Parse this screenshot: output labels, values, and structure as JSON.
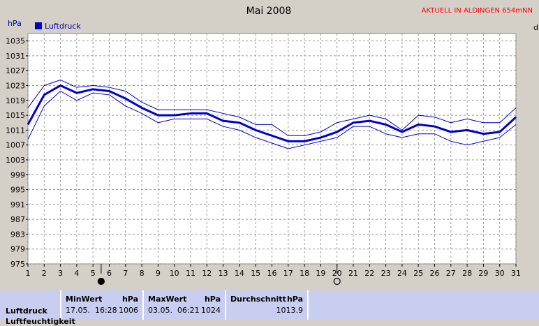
{
  "chart_data": {
    "type": "line",
    "title": "Mai 2008",
    "subtitle": "AKTUELL IN ALDINGEN 654mNN",
    "ylabel": "hPa",
    "right_edge_label": "d",
    "legend": "Luftdruck",
    "legend_placement": "top-left",
    "grid": true,
    "ylim": [
      975,
      1037
    ],
    "yticks": [
      975,
      979,
      983,
      987,
      991,
      995,
      999,
      1003,
      1007,
      1011,
      1015,
      1019,
      1023,
      1027,
      1031,
      1035
    ],
    "x": [
      1,
      2,
      3,
      4,
      5,
      6,
      7,
      8,
      9,
      10,
      11,
      12,
      13,
      14,
      15,
      16,
      17,
      18,
      19,
      20,
      21,
      22,
      23,
      24,
      25,
      26,
      27,
      28,
      29,
      30,
      31
    ],
    "series": [
      {
        "name": "Luftdruck",
        "role": "mean",
        "values": [
          1012.5,
          1020.5,
          1023,
          1021,
          1022,
          1021.5,
          1019.5,
          1017,
          1015,
          1015,
          1015.5,
          1015.5,
          1013.5,
          1013,
          1011,
          1009.5,
          1008,
          1008,
          1009,
          1010.5,
          1013,
          1013.5,
          1012.5,
          1010.5,
          1012.5,
          1012,
          1010.5,
          1011,
          1010,
          1010.5,
          1014.5
        ]
      },
      {
        "role": "max",
        "values": [
          1017,
          1023,
          1024.5,
          1022.5,
          1023,
          1022.5,
          1021.5,
          1018.5,
          1016.5,
          1016.5,
          1016.5,
          1016.5,
          1015.5,
          1014.5,
          1012.5,
          1012.5,
          1009.5,
          1009.5,
          1010.5,
          1013,
          1014,
          1015,
          1014,
          1011,
          1015,
          1014.5,
          1013,
          1014,
          1013,
          1013,
          1017
        ]
      },
      {
        "role": "min",
        "values": [
          1008.5,
          1017.5,
          1021.5,
          1019,
          1021,
          1020.5,
          1017.5,
          1015.5,
          1013,
          1014,
          1014,
          1014,
          1012,
          1011,
          1009,
          1007.5,
          1006,
          1007,
          1008,
          1009,
          1012,
          1012,
          1010,
          1009,
          1010,
          1010,
          1008,
          1007,
          1008,
          1009,
          1012.5
        ]
      }
    ],
    "markers": [
      {
        "x": 5.5,
        "type": "full-moon-dark"
      },
      {
        "x": 20,
        "type": "new-moon-light"
      }
    ],
    "colors": {
      "background": "#d4d0c8",
      "plot": "#ffffff",
      "series": "#0000cc",
      "subtitle": "#ff0000",
      "stats": "#c8cef0"
    }
  },
  "stats": {
    "row_label": "Luftdruck",
    "row_label_2": "Luftfeuchtigkeit",
    "min": {
      "head": "MinWert",
      "unit": "hPa",
      "time": "17.05.  16:28",
      "value": "1006"
    },
    "max": {
      "head": "MaxWert",
      "unit": "hPa",
      "time": "03.05.  06:21",
      "value": "1024"
    },
    "avg": {
      "head": "Durchschnitt",
      "unit": "hPa",
      "value": "1013.9"
    }
  }
}
